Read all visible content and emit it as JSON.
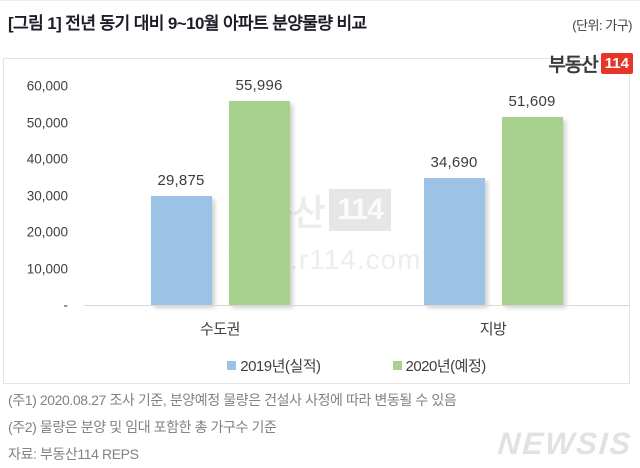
{
  "header": {
    "title": "[그림 1] 전년 동기 대비 9~10월 아파트 분양물량 비교",
    "unit": "(단위: 가구)"
  },
  "brand_logo": {
    "text": "부동산",
    "badge": "114"
  },
  "center_watermark": {
    "brand": "부동산",
    "badge": "114",
    "url": "www.r114.com"
  },
  "chart_data": {
    "type": "bar",
    "categories": [
      "수도권",
      "지방"
    ],
    "series": [
      {
        "name": "2019년(실적)",
        "color": "#9CC3E5",
        "values": [
          29875,
          34690
        ]
      },
      {
        "name": "2020년(예정)",
        "color": "#A8D08E",
        "values": [
          55996,
          51609
        ]
      }
    ],
    "ylim": [
      0,
      60000
    ],
    "yticks": [
      {
        "label": "60,000",
        "value": 60000
      },
      {
        "label": "50,000",
        "value": 50000
      },
      {
        "label": "40,000",
        "value": 40000
      },
      {
        "label": "30,000",
        "value": 30000
      },
      {
        "label": "20,000",
        "value": 20000
      },
      {
        "label": "10,000",
        "value": 10000
      },
      {
        "label": "-",
        "value": 0
      }
    ],
    "grid": false,
    "legend_position": "bottom",
    "value_label_format": "#,##0"
  },
  "footnotes": [
    "(주1) 2020.08.27 조사 기준, 분양예정 물량은 건설사 사정에 따라 변동될 수 있음",
    "(주2) 물량은 분양 및 임대 포함한 총 가구수 기준",
    "자료: 부동산114 REPS"
  ],
  "press_watermark": "NEWSIS"
}
